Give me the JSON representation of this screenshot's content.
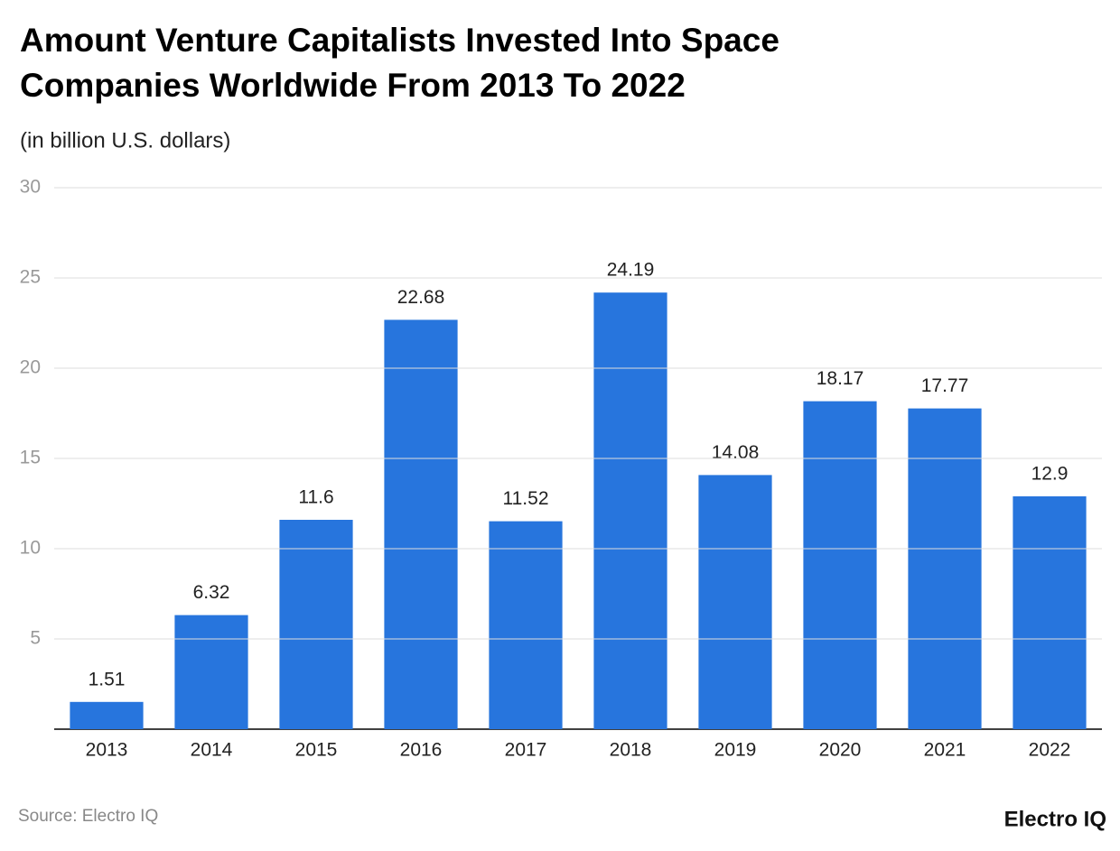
{
  "chart_data": {
    "type": "bar",
    "title": "Amount Venture Capitalists Invested Into Space Companies Worldwide From 2013 To 2022",
    "subtitle": "(in billion U.S. dollars)",
    "categories": [
      "2013",
      "2014",
      "2015",
      "2016",
      "2017",
      "2018",
      "2019",
      "2020",
      "2021",
      "2022"
    ],
    "values": [
      1.51,
      6.32,
      11.6,
      22.68,
      11.52,
      24.19,
      14.08,
      18.17,
      17.77,
      12.9
    ],
    "color": "#2775dd",
    "ylim": [
      0,
      30
    ],
    "yticks": [
      5,
      10,
      15,
      20,
      25,
      30
    ],
    "grid": true,
    "source": "Source: Electro IQ",
    "brand": "Electro IQ"
  }
}
